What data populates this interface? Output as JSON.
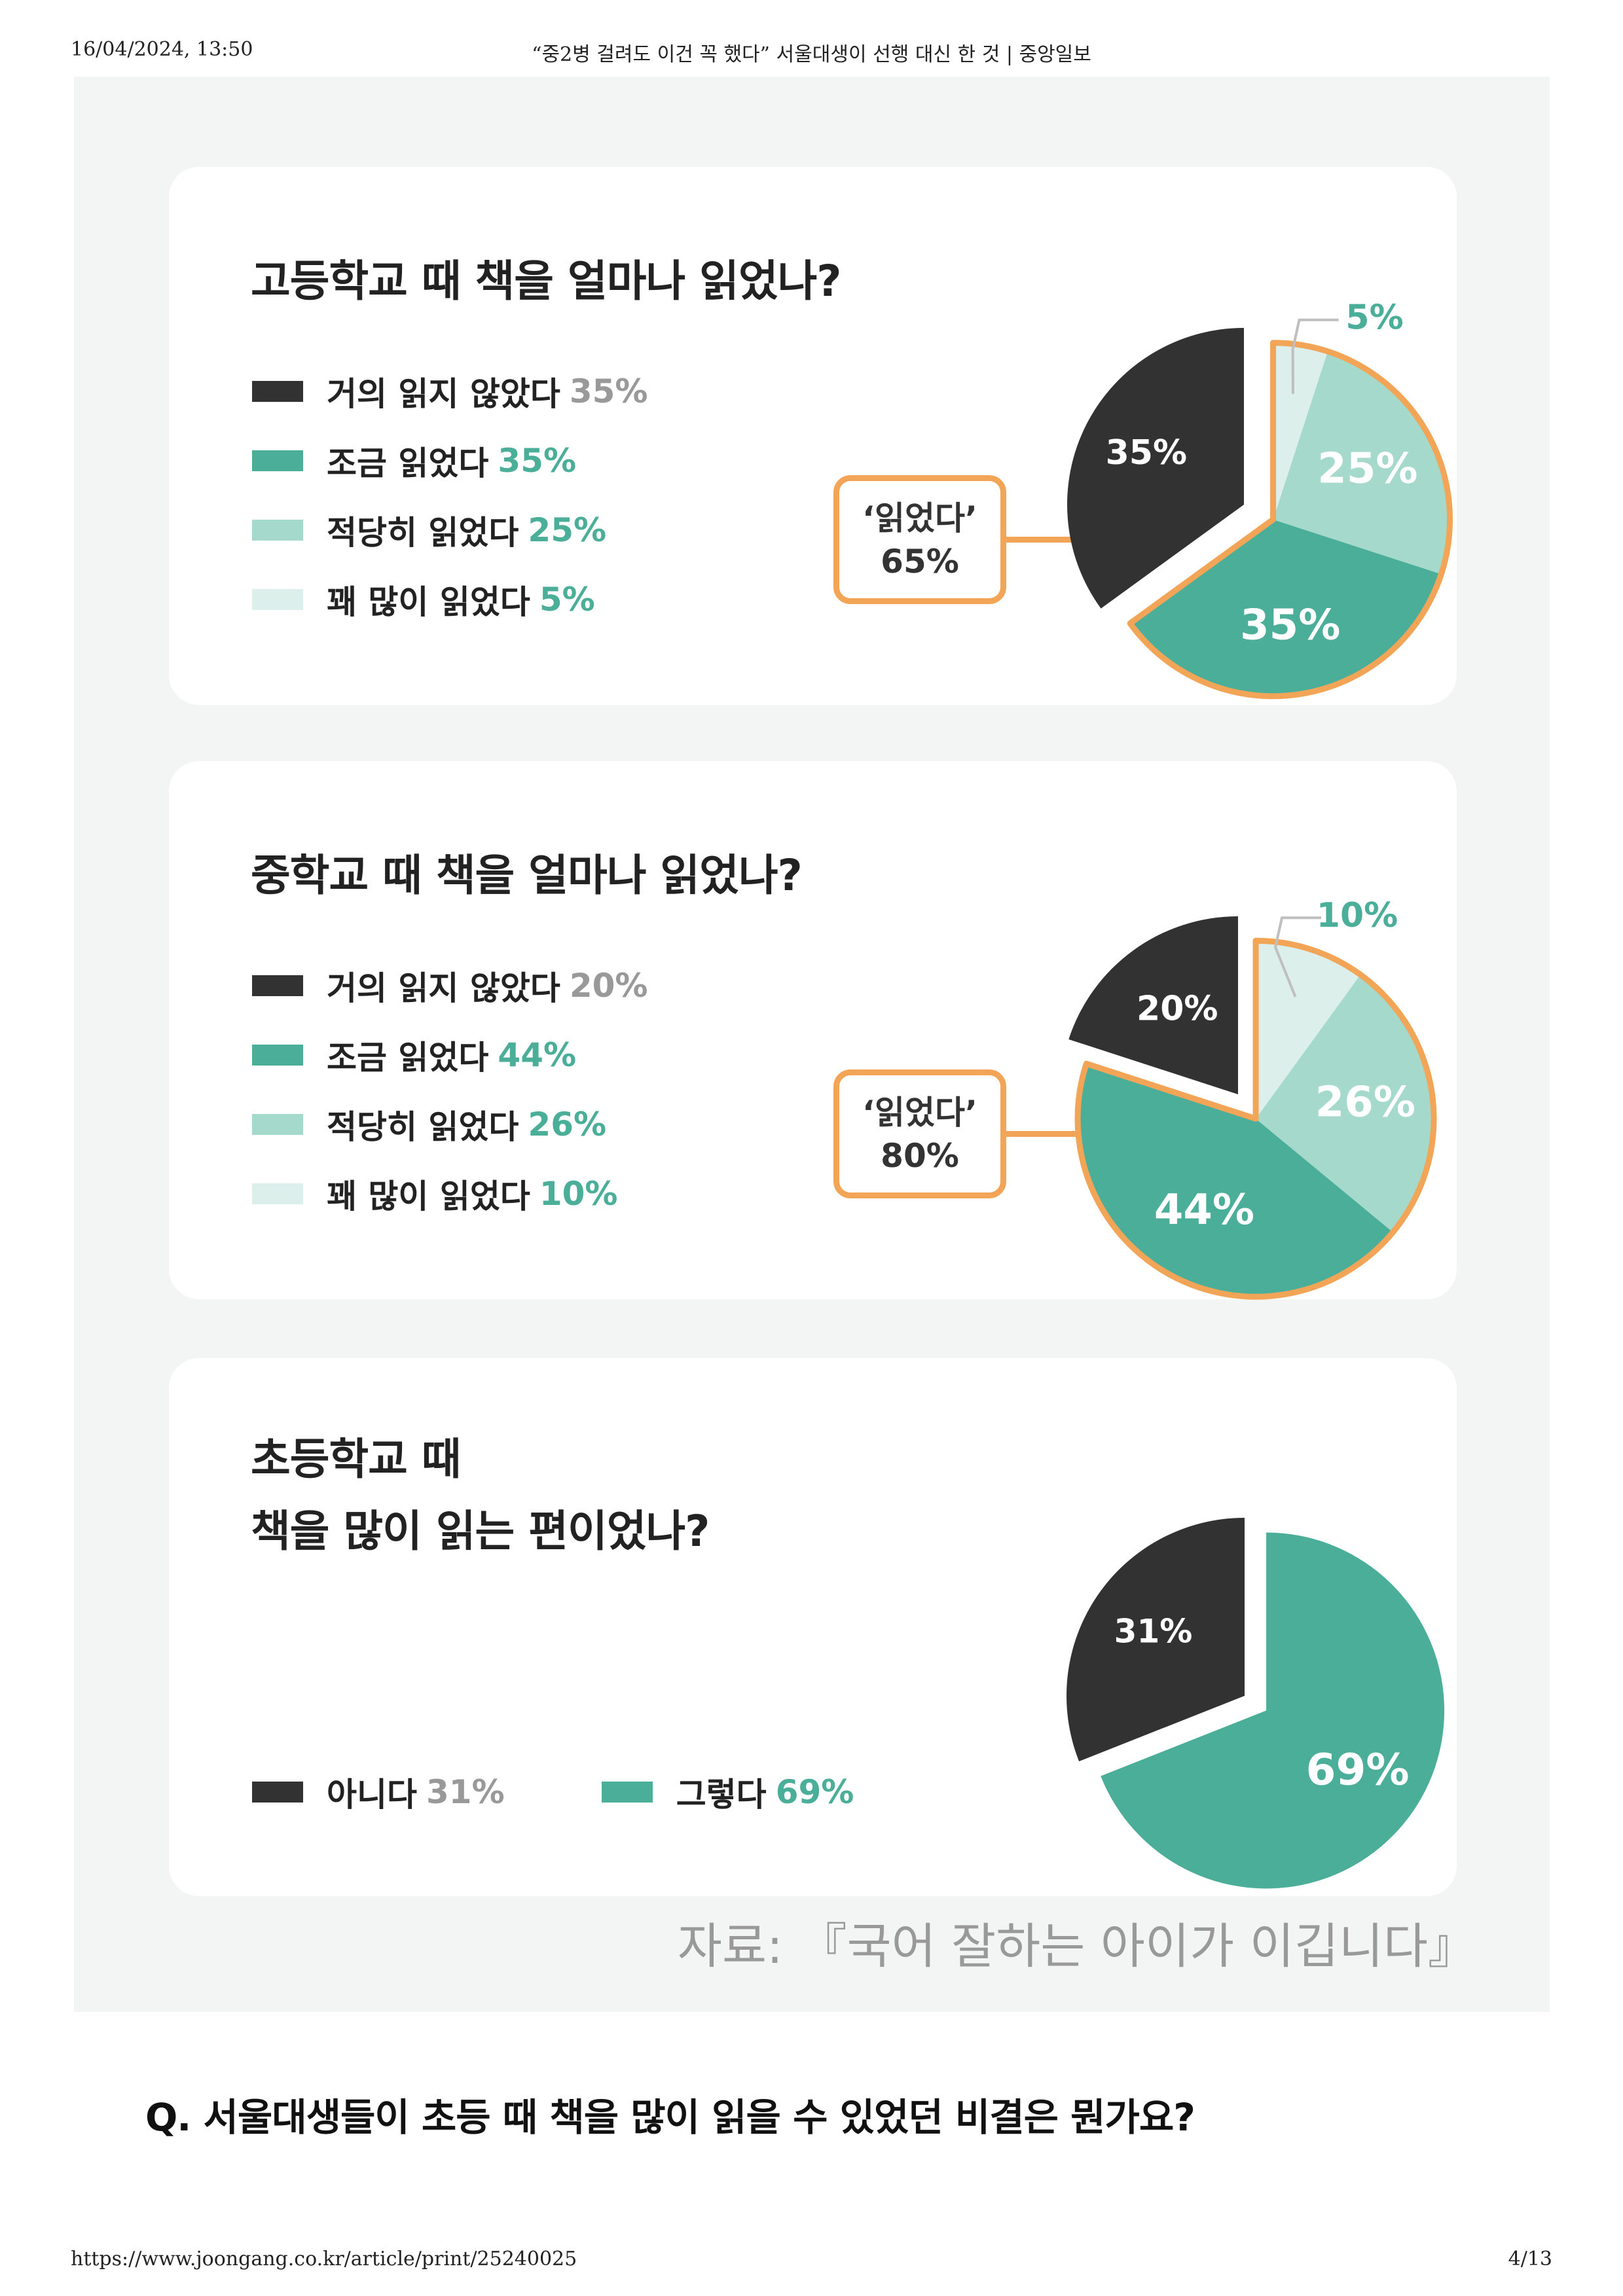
{
  "print_header": {
    "date": "16/04/2024, 13:50",
    "title": "“중2병 걸려도 이건 꼭 했다” 서울대생이 선행 대신 한 것 | 중앙일보"
  },
  "print_footer": {
    "url": "https://www.joongang.co.kr/article/print/25240025",
    "page": "4/13"
  },
  "colors": {
    "dark": "#323232",
    "teal": "#4bae99",
    "light_teal": "#a5d9cb",
    "pale_teal": "#dcefea",
    "orange": "#f2a557",
    "panel_bg": "#f3f5f4"
  },
  "source": "자료: 『국어 잘하는 아이가 이깁니다』",
  "question": "Q. 서울대생들이 초등 때 책을 많이 읽을 수 있었던 비결은 뭔가요?",
  "chart_data": [
    {
      "type": "pie",
      "title": "고등학교 때 책을 얼마나 읽었나?",
      "legend_position": "left",
      "slices": [
        {
          "label": "거의 읽지 않았다",
          "value": 35,
          "value_text": "35%",
          "color": "#323232",
          "pct_color": "#999999",
          "text_color": "#ffffff",
          "exploded": false
        },
        {
          "label": "조금 읽었다",
          "value": 35,
          "value_text": "35%",
          "color": "#4bae99",
          "pct_color": "#4bae99",
          "text_color": "#ffffff",
          "exploded": true
        },
        {
          "label": "적당히 읽었다",
          "value": 25,
          "value_text": "25%",
          "color": "#a5d9cb",
          "pct_color": "#4bae99",
          "text_color": "#ffffff",
          "exploded": true
        },
        {
          "label": "꽤 많이 읽었다",
          "value": 5,
          "value_text": "5%",
          "color": "#dcefea",
          "pct_color": "#4bae99",
          "text_color": "#4bae99",
          "exploded": true
        }
      ],
      "callout": {
        "line1": "‘읽었다’",
        "line2": "65%"
      }
    },
    {
      "type": "pie",
      "title": "중학교 때 책을 얼마나 읽었나?",
      "legend_position": "left",
      "slices": [
        {
          "label": "거의 읽지 않았다",
          "value": 20,
          "value_text": "20%",
          "color": "#323232",
          "pct_color": "#999999",
          "text_color": "#ffffff",
          "exploded": false
        },
        {
          "label": "조금 읽었다",
          "value": 44,
          "value_text": "44%",
          "color": "#4bae99",
          "pct_color": "#4bae99",
          "text_color": "#ffffff",
          "exploded": true
        },
        {
          "label": "적당히 읽었다",
          "value": 26,
          "value_text": "26%",
          "color": "#a5d9cb",
          "pct_color": "#4bae99",
          "text_color": "#ffffff",
          "exploded": true
        },
        {
          "label": "꽤 많이 읽었다",
          "value": 10,
          "value_text": "10%",
          "color": "#dcefea",
          "pct_color": "#4bae99",
          "text_color": "#4bae99",
          "exploded": true
        }
      ],
      "callout": {
        "line1": "‘읽었다’",
        "line2": "80%"
      }
    },
    {
      "type": "pie",
      "title_lines": [
        "초등학교 때",
        "책을 많이 읽는 편이었나?"
      ],
      "legend_position": "bottom",
      "slices": [
        {
          "label": "아니다",
          "value": 31,
          "value_text": "31%",
          "color": "#323232",
          "pct_color": "#999999",
          "text_color": "#ffffff",
          "exploded": false
        },
        {
          "label": "그렇다",
          "value": 69,
          "value_text": "69%",
          "color": "#4bae99",
          "pct_color": "#4bae99",
          "text_color": "#ffffff",
          "exploded": true
        }
      ]
    }
  ]
}
